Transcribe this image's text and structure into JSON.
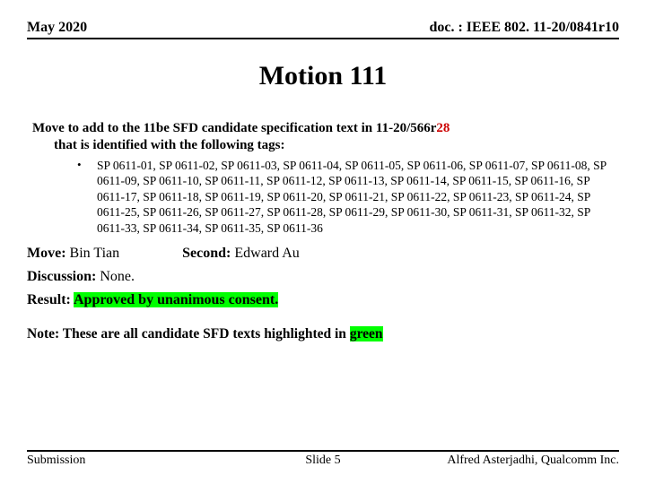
{
  "header": {
    "left": "May 2020",
    "right": "doc. : IEEE 802. 11-20/0841r10"
  },
  "title": "Motion 111",
  "intro": {
    "line1_prefix": "Move to add to the 11be SFD candidate specification text in 11-20/566r",
    "line1_red": "28",
    "line2": "that is identified with the following tags:"
  },
  "bullet": "•",
  "codes_text": "SP 0611-01, SP 0611-02, SP 0611-03, SP 0611-04, SP 0611-05, SP 0611-06, SP 0611-07, SP 0611-08, SP 0611-09, SP 0611-10, SP 0611-11, SP 0611-12, SP 0611-13, SP 0611-14, SP 0611-15, SP 0611-16, SP 0611-17, SP 0611-18, SP 0611-19, SP 0611-20, SP 0611-21, SP 0611-22, SP 0611-23, SP 0611-24, SP 0611-25, SP 0611-26, SP 0611-27, SP 0611-28, SP 0611-29, SP 0611-30, SP 0611-31, SP 0611-32, SP 0611-33, SP 0611-34, SP 0611-35, SP 0611-36",
  "move": {
    "label": "Move: ",
    "name": "Bin Tian"
  },
  "second": {
    "label": "Second: ",
    "name": "Edward Au"
  },
  "discussion": {
    "label": "Discussion: ",
    "value": "None."
  },
  "result": {
    "label": "Result: ",
    "highlight": "Approved by unanimous consent."
  },
  "note": {
    "prefix": "Note: These are all candidate SFD texts highlighted in ",
    "green_word": "green"
  },
  "footer": {
    "left": "Submission",
    "center": "Slide 5",
    "right": "Alfred Asterjadhi, Qualcomm Inc."
  },
  "colors": {
    "highlight_green": "#00ff00",
    "red_text": "#cc0000",
    "background": "#ffffff",
    "text": "#000000"
  }
}
